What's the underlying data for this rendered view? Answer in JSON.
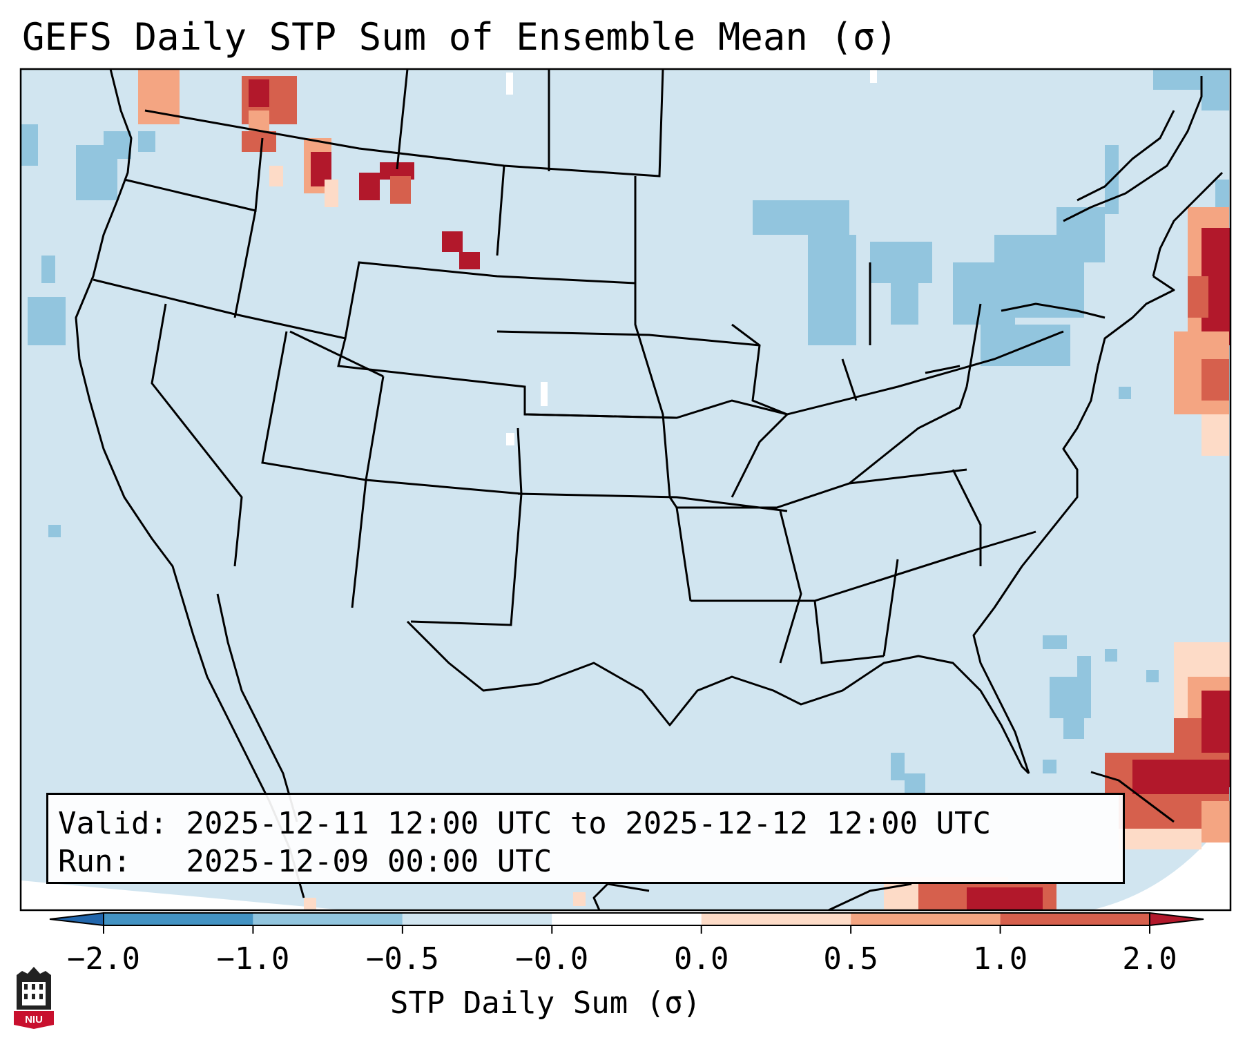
{
  "title": "GEFS Daily STP Sum of Ensemble Mean (σ)",
  "info": {
    "valid_label": "Valid:",
    "valid_value": "2025-12-11 12:00 UTC to 2025-12-12 12:00 UTC",
    "run_label": "Run:",
    "run_value": "2025-12-09 00:00 UTC"
  },
  "colorbar": {
    "label": "STP Daily Sum (σ)",
    "ticks": [
      "−2.0",
      "−1.0",
      "−0.5",
      "−0.0",
      "0.0",
      "0.5",
      "1.0",
      "2.0"
    ],
    "colors": [
      "#4393c3",
      "#92c5de",
      "#d1e5f0",
      "#ffffff",
      "#fddbc7",
      "#f4a582",
      "#d6604d"
    ],
    "under_color": "#2166ac",
    "over_color": "#b2182b",
    "extend": "both"
  },
  "map": {
    "background_color": "#d1e5f0",
    "outside_color": "#ffffff"
  },
  "logo": {
    "text": "NIU"
  }
}
